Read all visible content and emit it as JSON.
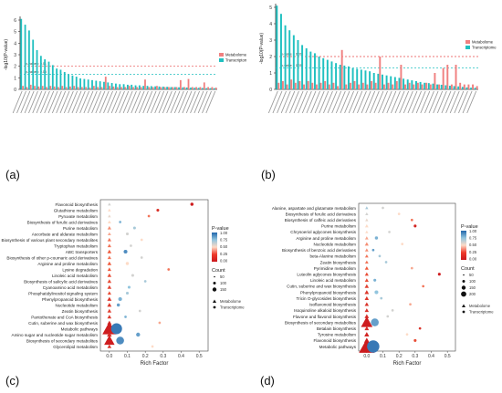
{
  "panels": [
    "(a)",
    "(b)",
    "(c)",
    "(d)"
  ],
  "colors": {
    "metabolome": "#f08080",
    "transcriptome": "#20c0c0",
    "sig_line_metabolome": "#e84a4a",
    "sig_line_transcriptome": "#20c0c0",
    "pvalue_gradient": [
      "#2166ac",
      "#92c5de",
      "#fddbc7",
      "#ef3b2c",
      "#cb181d"
    ]
  },
  "chart_data": [
    {
      "type": "bar",
      "panel": "(a)",
      "ylabel": "-log10(P-value)",
      "ylim": [
        0,
        6
      ],
      "yticks": [
        0,
        1,
        2,
        3,
        4,
        5,
        6
      ],
      "legend": {
        "placement": "top-right",
        "entries": [
          "Metabolome",
          "Transcriptome"
        ]
      },
      "annotations": [
        "p-value = 0.01",
        "p-value = 0.05"
      ],
      "thresholds": [
        2.0,
        1.3
      ],
      "series": [
        {
          "name": "Transcriptome",
          "values": [
            6.1,
            5.6,
            5.1,
            4.3,
            3.4,
            2.9,
            2.6,
            2.4,
            2.1,
            1.8,
            1.7,
            1.5,
            1.3,
            1.2,
            1.1,
            0.95,
            0.9,
            0.85,
            0.8,
            0.75,
            0.7,
            0.65,
            0.6,
            0.55,
            0.5,
            0.45,
            0.45,
            0.4,
            0.4,
            0.35,
            0.35,
            0.3,
            0.3,
            0.28,
            0.26,
            0.25,
            0.24,
            0.22,
            0.2,
            0.2,
            0.18,
            0.18,
            0.16,
            0.15,
            0.14,
            0.13,
            0.12,
            0.11,
            0.1,
            0.1
          ]
        },
        {
          "name": "Metabolome",
          "values": [
            0.3,
            0.2,
            0.4,
            0.3,
            0.25,
            0.3,
            0.2,
            0.3,
            0.25,
            0.2,
            0.3,
            0.2,
            0.25,
            0.3,
            0.2,
            0.2,
            0.2,
            0.15,
            0.3,
            0.2,
            0.2,
            1.1,
            0.3,
            0.25,
            0.2,
            0.2,
            0.2,
            0.3,
            0.2,
            0.2,
            0.2,
            0.85,
            0.2,
            0.2,
            0.3,
            0.2,
            0.2,
            0.2,
            0.2,
            0.2,
            0.8,
            0.2,
            0.9,
            0.2,
            0.2,
            0.2,
            0.6,
            0.2,
            0.2,
            0.15
          ]
        }
      ]
    },
    {
      "type": "bar",
      "panel": "(b)",
      "ylabel": "-log10(P-value)",
      "ylim": [
        0,
        5
      ],
      "yticks": [
        0,
        1,
        2,
        3,
        4,
        5
      ],
      "legend": {
        "placement": "top-right",
        "entries": [
          "Metabolome",
          "Transcriptome"
        ]
      },
      "annotations": [
        "p-value = 0.01",
        "p-value = 0.05"
      ],
      "thresholds": [
        2.0,
        1.3
      ],
      "series": [
        {
          "name": "Transcriptome",
          "values": [
            5.1,
            4.6,
            3.9,
            3.6,
            3.3,
            3.0,
            2.7,
            2.5,
            2.3,
            2.2,
            2.0,
            1.9,
            1.8,
            1.7,
            1.6,
            1.5,
            1.45,
            1.4,
            1.3,
            1.25,
            1.2,
            1.15,
            1.1,
            1.0,
            0.95,
            0.9,
            0.85,
            0.8,
            0.75,
            0.7,
            0.65,
            0.6,
            0.55,
            0.5,
            0.45,
            0.4,
            0.38,
            0.35,
            0.3,
            0.28,
            0.25,
            0.22,
            0.2,
            0.18,
            0.15,
            0.12,
            0.1,
            0.1
          ]
        },
        {
          "name": "Metabolome",
          "values": [
            0.4,
            0.5,
            0.3,
            0.6,
            0.4,
            0.5,
            0.3,
            0.5,
            0.4,
            0.3,
            0.4,
            0.5,
            0.3,
            0.4,
            0.2,
            2.4,
            0.3,
            0.4,
            0.5,
            0.3,
            0.4,
            0.3,
            0.5,
            0.4,
            2.0,
            0.3,
            0.4,
            0.3,
            0.5,
            1.5,
            0.3,
            0.4,
            0.3,
            0.4,
            0.3,
            0.4,
            0.3,
            1.0,
            0.3,
            1.3,
            1.5,
            0.3,
            1.5,
            0.4,
            0.3,
            0.3,
            0.3,
            0.2
          ]
        }
      ]
    },
    {
      "type": "scatter",
      "panel": "(c)",
      "xlabel": "Rich Factor",
      "xlim": [
        -0.05,
        0.55
      ],
      "xticks": [
        0.0,
        0.1,
        0.2,
        0.3,
        0.4,
        0.5
      ],
      "legend": {
        "placement": "right",
        "color_title": "P-value",
        "color_ticks": [
          "1.00",
          "0.75",
          "0.50",
          "0.25",
          "0.00"
        ],
        "size_title": "Count",
        "size_entries": [
          "50",
          "100",
          "150"
        ],
        "shape_entries": [
          "Metabolome",
          "Transcriptome"
        ]
      },
      "categories": [
        "Flavonoid biosynthesis",
        "Glutathione metabolism",
        "Pyruvate metabolism",
        "Biosynthesis of ferulic acid derivatives",
        "Purine metabolism",
        "Ascorbate and aldarate metabolism",
        "Biosynthesis of various plant secondary metabolites",
        "Tryptophan metabolism",
        "ABC transporters",
        "Biosynthesis of other p-coumaric acid derivatives",
        "Arginine and proline metabolism",
        "Lysine degradation",
        "Linoleic acid metabolism",
        "Biosynthesis of salicylic acid derivatives",
        "Cyanoamino acid metabolism",
        "Phosphatidylinositol signaling system",
        "Phenylpropanoid biosynthesis",
        "Nucleotide metabolism",
        "Zeatin biosynthesis",
        "Pantothenate and CoA biosynthesis",
        "Cutin, suberine and wax biosynthesis",
        "Metabolic pathways",
        "Amino sugar and nucleotide sugar metabolism",
        "Biosynthesis of secondary metabolites",
        "Glycerolipid metabolism"
      ],
      "metabolome": [
        {
          "x": 0.0,
          "p": 0.6,
          "count": 8
        },
        {
          "x": 0.0,
          "p": 0.5,
          "count": 8
        },
        {
          "x": 0.0,
          "p": 0.55,
          "count": 8
        },
        {
          "x": 0.0,
          "p": 0.5,
          "count": 10
        },
        {
          "x": 0.0,
          "p": 0.35,
          "count": 12
        },
        {
          "x": 0.0,
          "p": 0.4,
          "count": 10
        },
        {
          "x": 0.0,
          "p": 0.3,
          "count": 12
        },
        {
          "x": 0.0,
          "p": 0.3,
          "count": 12
        },
        {
          "x": 0.0,
          "p": 0.25,
          "count": 14
        },
        {
          "x": 0.0,
          "p": 0.3,
          "count": 12
        },
        {
          "x": 0.0,
          "p": 0.25,
          "count": 14
        },
        {
          "x": 0.0,
          "p": 0.25,
          "count": 12
        },
        {
          "x": 0.0,
          "p": 0.2,
          "count": 14
        },
        {
          "x": 0.0,
          "p": 0.2,
          "count": 14
        },
        {
          "x": 0.0,
          "p": 0.15,
          "count": 14
        },
        {
          "x": 0.0,
          "p": 0.2,
          "count": 12
        },
        {
          "x": 0.0,
          "p": 0.12,
          "count": 16
        },
        {
          "x": 0.0,
          "p": 0.12,
          "count": 16
        },
        {
          "x": 0.0,
          "p": 0.15,
          "count": 14
        },
        {
          "x": 0.0,
          "p": 0.12,
          "count": 14
        },
        {
          "x": 0.0,
          "p": 0.1,
          "count": 16
        },
        {
          "x": 0.0,
          "p": 0.02,
          "count": 160
        },
        {
          "x": 0.0,
          "p": 0.08,
          "count": 20
        },
        {
          "x": 0.0,
          "p": 0.02,
          "count": 90
        },
        {
          "x": 0.0,
          "p": 0.1,
          "count": 14
        }
      ],
      "transcriptome": [
        {
          "x": 0.46,
          "p": 0.02,
          "count": 10
        },
        {
          "x": 0.27,
          "p": 0.1,
          "count": 8
        },
        {
          "x": 0.22,
          "p": 0.3,
          "count": 6
        },
        {
          "x": 0.06,
          "p": 0.8,
          "count": 6
        },
        {
          "x": 0.14,
          "p": 0.7,
          "count": 8
        },
        {
          "x": 0.1,
          "p": 0.6,
          "count": 8
        },
        {
          "x": 0.18,
          "p": 0.5,
          "count": 6
        },
        {
          "x": 0.12,
          "p": 0.6,
          "count": 6
        },
        {
          "x": 0.09,
          "p": 0.9,
          "count": 14
        },
        {
          "x": 0.18,
          "p": 0.6,
          "count": 6
        },
        {
          "x": 0.1,
          "p": 0.5,
          "count": 10
        },
        {
          "x": 0.33,
          "p": 0.3,
          "count": 6
        },
        {
          "x": 0.13,
          "p": 0.6,
          "count": 8
        },
        {
          "x": 0.2,
          "p": 0.7,
          "count": 6
        },
        {
          "x": 0.11,
          "p": 0.75,
          "count": 8
        },
        {
          "x": 0.1,
          "p": 0.7,
          "count": 8
        },
        {
          "x": 0.06,
          "p": 0.8,
          "count": 14
        },
        {
          "x": 0.05,
          "p": 0.85,
          "count": 10
        },
        {
          "x": 0.17,
          "p": 0.6,
          "count": 6
        },
        {
          "x": 0.09,
          "p": 0.8,
          "count": 6
        },
        {
          "x": 0.28,
          "p": 0.4,
          "count": 6
        },
        {
          "x": 0.04,
          "p": 0.95,
          "count": 120
        },
        {
          "x": 0.16,
          "p": 0.85,
          "count": 16
        },
        {
          "x": 0.06,
          "p": 0.9,
          "count": 60
        },
        {
          "x": 0.24,
          "p": 0.5,
          "count": 6
        }
      ]
    },
    {
      "type": "scatter",
      "panel": "(d)",
      "xlabel": "Rich Factor",
      "xlim": [
        -0.05,
        0.55
      ],
      "xticks": [
        0.0,
        0.1,
        0.2,
        0.3,
        0.4,
        0.5
      ],
      "legend": {
        "placement": "right",
        "color_title": "P-value",
        "color_ticks": [
          "1.00",
          "0.75",
          "0.50",
          "0.25",
          "0.00"
        ],
        "size_title": "Count",
        "size_entries": [
          "50",
          "100",
          "150",
          "200"
        ],
        "shape_entries": [
          "Metabolome",
          "Transcriptome"
        ]
      },
      "categories": [
        "Alanine, aspartate and glutamate metabolism",
        "Biosynthesis of ferulic acid derivatives",
        "Biosynthesis of caffeic acid derivatives",
        "Purine metabolism",
        "Chrysoeriol aglycones biosynthesis",
        "Arginine and proline metabolism",
        "Nucleotide metabolism",
        "Biosynthesis of benzoic acid derivatives",
        "beta-Alanine metabolism",
        "Zeatin biosynthesis",
        "Pyrimidine metabolism",
        "Luteolin aglycones biosynthesis",
        "Linoleic acid metabolism",
        "Cutin, suberine and wax biosynthesis",
        "Phenylpropanoid biosynthesis",
        "Tricin O-glycosides biosynthesis",
        "Isoflavonoid biosynthesis",
        "Isoquinoline alkaloid biosynthesis",
        "Flavone and flavonol biosynthesis",
        "Biosynthesis of secondary metabolites",
        "Betalain biosynthesis",
        "Tyrosine metabolism",
        "Flavonoid biosynthesis",
        "Metabolic pathways"
      ],
      "metabolome": [
        {
          "x": 0.0,
          "p": 0.7,
          "count": 8
        },
        {
          "x": 0.0,
          "p": 0.6,
          "count": 8
        },
        {
          "x": 0.0,
          "p": 0.55,
          "count": 8
        },
        {
          "x": 0.0,
          "p": 0.5,
          "count": 10
        },
        {
          "x": 0.0,
          "p": 0.5,
          "count": 8
        },
        {
          "x": 0.0,
          "p": 0.4,
          "count": 10
        },
        {
          "x": 0.0,
          "p": 0.35,
          "count": 12
        },
        {
          "x": 0.0,
          "p": 0.35,
          "count": 10
        },
        {
          "x": 0.0,
          "p": 0.3,
          "count": 10
        },
        {
          "x": 0.0,
          "p": 0.3,
          "count": 10
        },
        {
          "x": 0.0,
          "p": 0.25,
          "count": 12
        },
        {
          "x": 0.0,
          "p": 0.2,
          "count": 12
        },
        {
          "x": 0.0,
          "p": 0.2,
          "count": 12
        },
        {
          "x": 0.0,
          "p": 0.15,
          "count": 14
        },
        {
          "x": 0.0,
          "p": 0.12,
          "count": 16
        },
        {
          "x": 0.0,
          "p": 0.12,
          "count": 14
        },
        {
          "x": 0.0,
          "p": 0.1,
          "count": 14
        },
        {
          "x": 0.0,
          "p": 0.1,
          "count": 14
        },
        {
          "x": 0.0,
          "p": 0.08,
          "count": 16
        },
        {
          "x": 0.0,
          "p": 0.02,
          "count": 110
        },
        {
          "x": 0.0,
          "p": 0.08,
          "count": 16
        },
        {
          "x": 0.0,
          "p": 0.05,
          "count": 20
        },
        {
          "x": 0.0,
          "p": 0.04,
          "count": 24
        },
        {
          "x": 0.0,
          "p": 0.01,
          "count": 200
        }
      ],
      "transcriptome": [
        {
          "x": 0.1,
          "p": 0.6,
          "count": 6
        },
        {
          "x": 0.2,
          "p": 0.5,
          "count": 6
        },
        {
          "x": 0.28,
          "p": 0.3,
          "count": 6
        },
        {
          "x": 0.3,
          "p": 0.05,
          "count": 8
        },
        {
          "x": 0.14,
          "p": 0.6,
          "count": 6
        },
        {
          "x": 0.06,
          "p": 0.8,
          "count": 10
        },
        {
          "x": 0.22,
          "p": 0.5,
          "count": 6
        },
        {
          "x": 0.04,
          "p": 0.85,
          "count": 6
        },
        {
          "x": 0.08,
          "p": 0.7,
          "count": 6
        },
        {
          "x": 0.12,
          "p": 0.7,
          "count": 6
        },
        {
          "x": 0.28,
          "p": 0.4,
          "count": 6
        },
        {
          "x": 0.45,
          "p": 0.02,
          "count": 8
        },
        {
          "x": 0.05,
          "p": 0.8,
          "count": 8
        },
        {
          "x": 0.35,
          "p": 0.3,
          "count": 6
        },
        {
          "x": 0.06,
          "p": 0.75,
          "count": 14
        },
        {
          "x": 0.09,
          "p": 0.7,
          "count": 6
        },
        {
          "x": 0.27,
          "p": 0.4,
          "count": 6
        },
        {
          "x": 0.16,
          "p": 0.6,
          "count": 6
        },
        {
          "x": 0.13,
          "p": 0.6,
          "count": 6
        },
        {
          "x": 0.05,
          "p": 0.85,
          "count": 60
        },
        {
          "x": 0.33,
          "p": 0.1,
          "count": 6
        },
        {
          "x": 0.25,
          "p": 0.5,
          "count": 6
        },
        {
          "x": 0.3,
          "p": 0.2,
          "count": 8
        },
        {
          "x": 0.04,
          "p": 0.95,
          "count": 150
        }
      ]
    }
  ]
}
